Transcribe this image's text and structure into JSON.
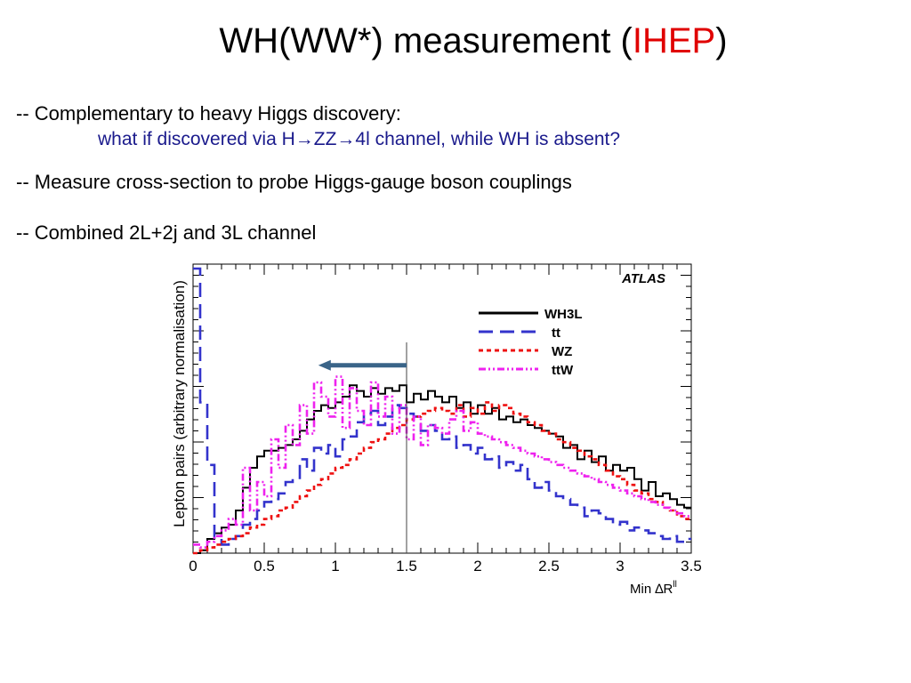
{
  "slide": {
    "title_main": "WH(WW*) measurement (",
    "title_accent": "IHEP",
    "title_end": ")",
    "bullet1": "-- Complementary to heavy Higgs discovery:",
    "bullet1_sub": "what if discovered via H→ZZ→4l channel, while WH is absent?",
    "bullet2": "-- Measure cross-section to probe Higgs-gauge boson couplings",
    "bullet3": "-- Combined 2L+2j and 3L channel",
    "accent_color": "#e00000",
    "sub_color": "#1a1a8c"
  },
  "chart_data": {
    "type": "line",
    "title": "",
    "atlas_label": "ATLAS",
    "xlabel": "Min ∆R",
    "xlabel_sup": "ll",
    "ylabel": "Lepton pairs (arbitrary normalisation)",
    "xlim": [
      0,
      3.5
    ],
    "ylim": [
      0,
      1
    ],
    "x_ticks": [
      "0",
      "0.5",
      "1",
      "1.5",
      "2",
      "2.5",
      "3",
      "3.5"
    ],
    "grid": false,
    "legend_position": "top-right",
    "vertical_line_x": 1.5,
    "arrow": {
      "from_x": 1.5,
      "to_x": 0.88,
      "y": 0.66,
      "color": "#3a6488"
    },
    "bin_width": 0.05,
    "series": [
      {
        "name": "WH3L",
        "color": "#000000",
        "dash": "solid",
        "values": [
          0.0,
          0.01,
          0.05,
          0.07,
          0.09,
          0.1,
          0.15,
          0.23,
          0.3,
          0.34,
          0.36,
          0.36,
          0.37,
          0.38,
          0.4,
          0.43,
          0.47,
          0.5,
          0.52,
          0.51,
          0.53,
          0.55,
          0.59,
          0.57,
          0.55,
          0.58,
          0.56,
          0.58,
          0.57,
          0.59,
          0.53,
          0.56,
          0.54,
          0.57,
          0.55,
          0.53,
          0.55,
          0.51,
          0.53,
          0.49,
          0.52,
          0.49,
          0.51,
          0.47,
          0.48,
          0.46,
          0.47,
          0.45,
          0.44,
          0.43,
          0.42,
          0.41,
          0.37,
          0.38,
          0.33,
          0.36,
          0.32,
          0.34,
          0.29,
          0.31,
          0.29,
          0.3,
          0.26,
          0.22,
          0.25,
          0.2,
          0.21,
          0.19,
          0.17,
          0.16
        ]
      },
      {
        "name": "tt",
        "color": "#3333cc",
        "dash": "long",
        "values": [
          1.0,
          0.53,
          0.31,
          0.05,
          0.03,
          0.05,
          0.06,
          0.1,
          0.12,
          0.15,
          0.18,
          0.19,
          0.21,
          0.25,
          0.26,
          0.33,
          0.29,
          0.37,
          0.35,
          0.38,
          0.34,
          0.4,
          0.41,
          0.46,
          0.49,
          0.5,
          0.45,
          0.48,
          0.52,
          0.51,
          0.49,
          0.48,
          0.43,
          0.45,
          0.43,
          0.4,
          0.41,
          0.37,
          0.38,
          0.35,
          0.37,
          0.33,
          0.34,
          0.3,
          0.32,
          0.29,
          0.31,
          0.26,
          0.23,
          0.25,
          0.22,
          0.2,
          0.19,
          0.17,
          0.16,
          0.13,
          0.15,
          0.14,
          0.12,
          0.1,
          0.11,
          0.08,
          0.09,
          0.08,
          0.07,
          0.06,
          0.05,
          0.06,
          0.04,
          0.05
        ]
      },
      {
        "name": "WZ",
        "color": "#ee1111",
        "dash": "dotted",
        "values": [
          0.0,
          0.01,
          0.02,
          0.03,
          0.04,
          0.05,
          0.06,
          0.07,
          0.09,
          0.1,
          0.12,
          0.13,
          0.15,
          0.16,
          0.18,
          0.2,
          0.22,
          0.24,
          0.26,
          0.28,
          0.3,
          0.31,
          0.33,
          0.35,
          0.37,
          0.39,
          0.4,
          0.42,
          0.44,
          0.45,
          0.47,
          0.48,
          0.49,
          0.5,
          0.51,
          0.5,
          0.49,
          0.52,
          0.48,
          0.51,
          0.49,
          0.53,
          0.5,
          0.52,
          0.51,
          0.49,
          0.48,
          0.46,
          0.45,
          0.43,
          0.42,
          0.4,
          0.39,
          0.37,
          0.36,
          0.34,
          0.33,
          0.31,
          0.29,
          0.27,
          0.26,
          0.24,
          0.22,
          0.21,
          0.19,
          0.18,
          0.16,
          0.15,
          0.13,
          0.12
        ]
      },
      {
        "name": "ttW",
        "color": "#ee22ee",
        "dash": "dashdot",
        "values": [
          0.03,
          0.02,
          0.04,
          0.06,
          0.08,
          0.12,
          0.1,
          0.3,
          0.15,
          0.25,
          0.2,
          0.4,
          0.3,
          0.45,
          0.38,
          0.52,
          0.42,
          0.6,
          0.55,
          0.48,
          0.62,
          0.44,
          0.58,
          0.5,
          0.45,
          0.6,
          0.48,
          0.55,
          0.42,
          0.52,
          0.4,
          0.48,
          0.38,
          0.45,
          0.44,
          0.42,
          0.47,
          0.5,
          0.43,
          0.46,
          0.42,
          0.41,
          0.4,
          0.39,
          0.38,
          0.37,
          0.36,
          0.35,
          0.34,
          0.33,
          0.32,
          0.31,
          0.3,
          0.29,
          0.28,
          0.27,
          0.26,
          0.25,
          0.24,
          0.23,
          0.22,
          0.21,
          0.2,
          0.19,
          0.18,
          0.17,
          0.16,
          0.15,
          0.14,
          0.13
        ]
      }
    ]
  }
}
